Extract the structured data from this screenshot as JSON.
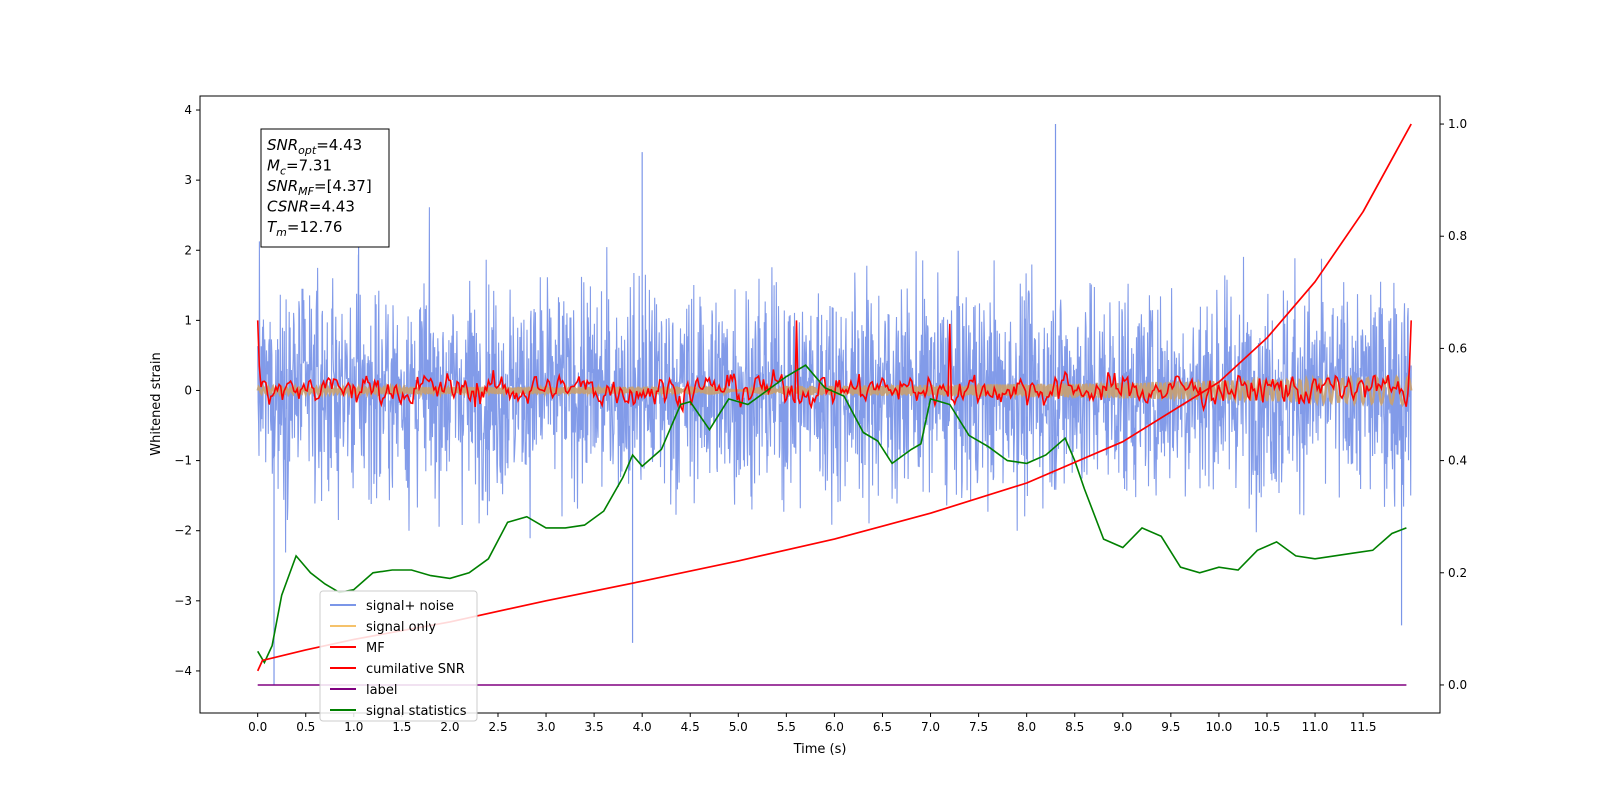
{
  "chart_data": {
    "type": "line",
    "title": "",
    "xlabel": "Time (s)",
    "ylabel_left": "Whitened strain",
    "ylabel_right": "",
    "x_range": [
      -0.6,
      12.3
    ],
    "y_left_range": [
      -4.6,
      4.2
    ],
    "y_right_range": [
      -0.05,
      1.05
    ],
    "x_ticks": [
      0.0,
      0.5,
      1.0,
      1.5,
      2.0,
      2.5,
      3.0,
      3.5,
      4.0,
      4.5,
      5.0,
      5.5,
      6.0,
      6.5,
      7.0,
      7.5,
      8.0,
      8.5,
      9.0,
      9.5,
      10.0,
      10.5,
      11.0,
      11.5
    ],
    "x_tick_labels": [
      "0.0",
      "0.5",
      "1.0",
      "1.5",
      "2.0",
      "2.5",
      "3.0",
      "3.5",
      "4.0",
      "4.5",
      "5.0",
      "5.5",
      "6.0",
      "6.5",
      "7.0",
      "7.5",
      "8.0",
      "8.5",
      "9.0",
      "9.5",
      "10.0",
      "10.5",
      "11.0",
      "11.5"
    ],
    "y_left_ticks": [
      4,
      3,
      2,
      1,
      0,
      -1,
      -2,
      -3,
      -4
    ],
    "y_left_tick_labels": [
      "4",
      "3",
      "2",
      "1",
      "0",
      "−1",
      "−2",
      "−3",
      "−4"
    ],
    "y_right_ticks": [
      1.0,
      0.8,
      0.6,
      0.4,
      0.2,
      0.0
    ],
    "y_right_tick_labels": [
      "1.0",
      "0.8",
      "0.6",
      "0.4",
      "0.2",
      "0.0"
    ],
    "annotation": [
      {
        "base": "SNR",
        "sub": "opt",
        "value": "=4.43"
      },
      {
        "base": "M",
        "sub": "c",
        "value": "=7.31"
      },
      {
        "base": "SNR",
        "sub": "MF",
        "value": "=[4.37]"
      },
      {
        "base": "CSNR",
        "sub": "",
        "value": "=4.43"
      },
      {
        "base": "T",
        "sub": "m",
        "value": "=12.76"
      }
    ],
    "legend_position": "lower-left",
    "series": [
      {
        "name": "signal+ noise",
        "color": "#7b96e8",
        "axis": "left",
        "t_start": 0.0,
        "t_end": 12.0,
        "mean": 0.0,
        "typical_range": [
          -2.5,
          2.5
        ],
        "max": 3.8,
        "min": -4.2
      },
      {
        "name": "signal only",
        "color": "#f5c26b",
        "axis": "left",
        "t_start": 0.0,
        "t_end": 12.0,
        "amplitude_start": 0.05,
        "amplitude_end": 0.2
      },
      {
        "name": "MF",
        "color": "#ff0000",
        "axis": "left",
        "t_start": 0.0,
        "t_end": 12.0,
        "start": 1.0,
        "end": 1.0,
        "typical_range": [
          -0.35,
          0.5
        ]
      },
      {
        "name": "cumilative SNR",
        "color": "#ff0000",
        "axis": "left",
        "x": [
          0.0,
          0.05,
          0.5,
          1.0,
          2.0,
          3.0,
          4.0,
          5.0,
          6.0,
          7.0,
          8.0,
          9.0,
          10.0,
          10.5,
          11.0,
          11.5,
          12.0
        ],
        "values": [
          -4.0,
          -3.85,
          -3.7,
          -3.55,
          -3.3,
          -3.0,
          -2.72,
          -2.43,
          -2.12,
          -1.75,
          -1.32,
          -0.73,
          0.12,
          0.75,
          1.55,
          2.55,
          3.8
        ]
      },
      {
        "name": "label",
        "color": "#800080",
        "axis": "right",
        "x": [
          0.0,
          11.95
        ],
        "values": [
          0.0,
          0.0
        ]
      },
      {
        "name": "signal statistics",
        "color": "#008000",
        "axis": "right",
        "x": [
          0.0,
          0.07,
          0.15,
          0.25,
          0.4,
          0.55,
          0.7,
          0.85,
          1.0,
          1.2,
          1.4,
          1.6,
          1.8,
          2.0,
          2.2,
          2.4,
          2.6,
          2.8,
          3.0,
          3.2,
          3.4,
          3.6,
          3.8,
          3.9,
          4.0,
          4.2,
          4.4,
          4.5,
          4.7,
          4.9,
          5.1,
          5.3,
          5.5,
          5.7,
          5.9,
          6.1,
          6.3,
          6.45,
          6.6,
          6.8,
          6.9,
          7.0,
          7.2,
          7.4,
          7.6,
          7.8,
          8.0,
          8.2,
          8.4,
          8.5,
          8.6,
          8.8,
          9.0,
          9.2,
          9.4,
          9.6,
          9.8,
          10.0,
          10.2,
          10.4,
          10.6,
          10.8,
          11.0,
          11.2,
          11.4,
          11.6,
          11.8,
          11.95
        ],
        "values": [
          0.06,
          0.04,
          0.07,
          0.16,
          0.23,
          0.2,
          0.18,
          0.165,
          0.17,
          0.2,
          0.205,
          0.205,
          0.195,
          0.19,
          0.2,
          0.225,
          0.29,
          0.3,
          0.28,
          0.28,
          0.285,
          0.31,
          0.37,
          0.41,
          0.39,
          0.42,
          0.5,
          0.505,
          0.455,
          0.51,
          0.5,
          0.525,
          0.55,
          0.57,
          0.53,
          0.515,
          0.45,
          0.435,
          0.395,
          0.42,
          0.43,
          0.51,
          0.5,
          0.445,
          0.425,
          0.4,
          0.395,
          0.41,
          0.44,
          0.4,
          0.35,
          0.26,
          0.245,
          0.28,
          0.265,
          0.21,
          0.2,
          0.21,
          0.205,
          0.24,
          0.255,
          0.23,
          0.225,
          0.23,
          0.235,
          0.24,
          0.27,
          0.28
        ]
      }
    ]
  }
}
